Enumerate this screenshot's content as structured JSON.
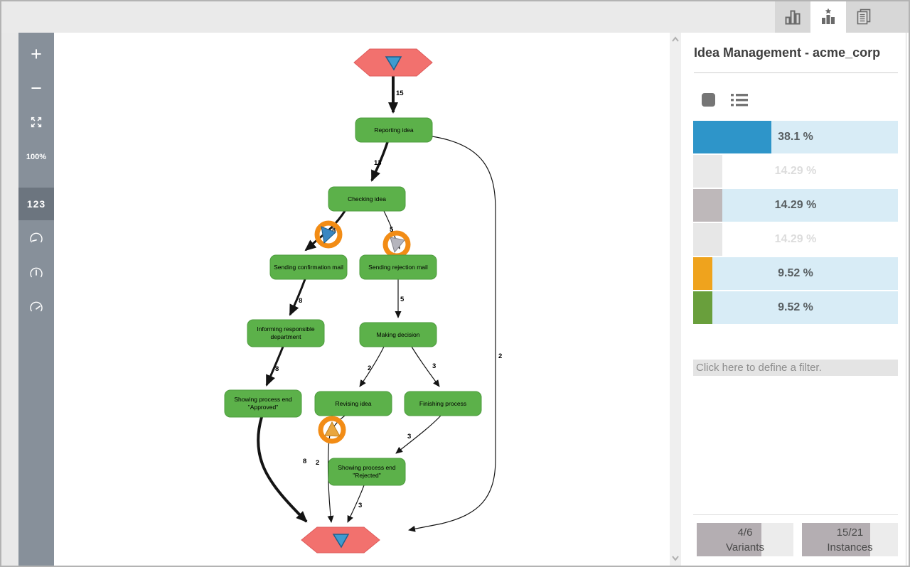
{
  "topbar": {
    "tabs": [
      {
        "name": "chart-view",
        "active": false
      },
      {
        "name": "variants-view",
        "active": true
      },
      {
        "name": "report-view",
        "active": false
      }
    ]
  },
  "sidebar": {
    "zoom_in": "+",
    "zoom_out": "−",
    "zoom_level": "100%",
    "numbers_label": "123"
  },
  "panel": {
    "title": "Idea Management - acme_corp",
    "filter_prompt": "Click here to define a filter.",
    "variants": [
      {
        "pct_label": "38.1 %",
        "pct": 38.1,
        "color": "#2e95c9",
        "selected": true,
        "dimmed": false
      },
      {
        "pct_label": "14.29 %",
        "pct": 14.29,
        "color": "#e9e9e9",
        "selected": false,
        "dimmed": true
      },
      {
        "pct_label": "14.29 %",
        "pct": 14.29,
        "color": "#beb8ba",
        "selected": true,
        "dimmed": false
      },
      {
        "pct_label": "14.29 %",
        "pct": 14.29,
        "color": "#e7e7e7",
        "selected": false,
        "dimmed": true
      },
      {
        "pct_label": "9.52 %",
        "pct": 9.52,
        "color": "#efa31d",
        "selected": true,
        "dimmed": false
      },
      {
        "pct_label": "9.52 %",
        "pct": 9.52,
        "color": "#699f3c",
        "selected": true,
        "dimmed": false
      }
    ],
    "stats": [
      {
        "value": "4/6",
        "label": "Variants",
        "fill_pct": 66.7
      },
      {
        "value": "15/21",
        "label": "Instances",
        "fill_pct": 71.4
      }
    ]
  },
  "diagram": {
    "nodes": {
      "reporting": {
        "label": "Reporting idea"
      },
      "checking": {
        "label": "Checking idea"
      },
      "confirm": {
        "label": "Sending confirmation mail"
      },
      "reject": {
        "label": "Sending rejection mail"
      },
      "informing": {
        "lines": [
          "Informing responsible",
          "department"
        ]
      },
      "decision": {
        "label": "Making decision"
      },
      "approved": {
        "lines": [
          "Showing process end",
          "\"Approved\""
        ]
      },
      "revising": {
        "label": "Revising idea"
      },
      "finishing": {
        "label": "Finishing process"
      },
      "rejected": {
        "lines": [
          "Showing process end",
          "\"Rejected\""
        ]
      }
    },
    "edge_counts": {
      "start_reporting": "15",
      "reporting_checking": "13",
      "reporting_end_bypass": "2",
      "checking_confirm": "8",
      "checking_reject": "5",
      "confirm_informing": "8",
      "reject_decision": "5",
      "informing_approved": "8",
      "decision_revising": "2",
      "decision_finishing": "3",
      "approved_end": "8",
      "revising_end": "2",
      "finishing_rejected": "3",
      "rejected_end": "3"
    },
    "colors": {
      "activity_fill": "#5cb14a",
      "start_end_fill": "#f2716e",
      "marker_ring": "#f28c15",
      "selection_blue": "#2e95c9"
    }
  }
}
